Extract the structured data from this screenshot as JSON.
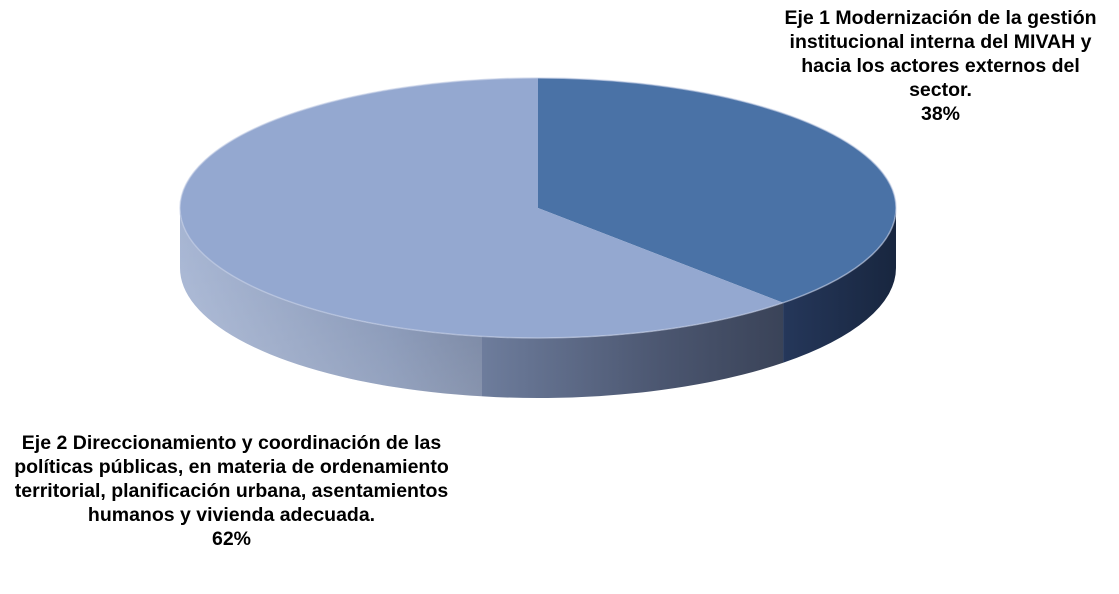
{
  "chart_data": {
    "type": "pie",
    "style": "3d",
    "title": "",
    "slices": [
      {
        "label": "Eje 1 Modernización de la gestión institucional interna del MIVAH y hacia los actores externos del sector.",
        "value": 38,
        "percent_label": "38%",
        "color": "#4a72a6"
      },
      {
        "label": "Eje 2 Direccionamiento y coordinación de las políticas públicas, en materia de ordenamiento territorial, planificación urbana, asentamientos humanos y vivienda adecuada.",
        "value": 62,
        "percent_label": "62%",
        "color": "#94a8d0"
      }
    ],
    "start_angle": "12 o'clock",
    "direction": "clockwise",
    "legend": "none"
  }
}
